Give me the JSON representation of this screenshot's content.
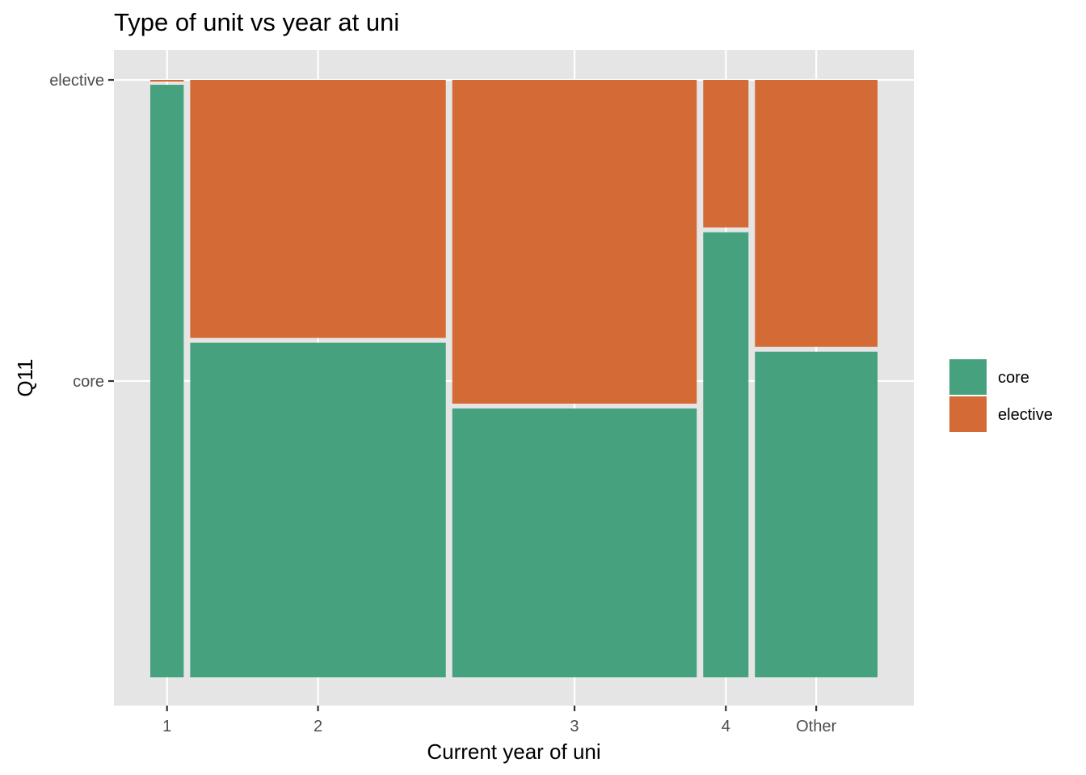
{
  "chart_data": {
    "type": "mosaic",
    "title": "Type of unit vs year at uni",
    "xlabel": "Current year of uni",
    "ylabel": "Q11",
    "x_categories": [
      "1",
      "2",
      "3",
      "4",
      "Other"
    ],
    "x_widths": [
      0.048,
      0.367,
      0.351,
      0.065,
      0.176
    ],
    "y_categories": [
      "core",
      "elective"
    ],
    "y_ticks": [
      "elective",
      "core"
    ],
    "proportions": {
      "core": [
        0.99,
        0.56,
        0.45,
        0.745,
        0.545
      ],
      "elective": [
        0.01,
        0.44,
        0.55,
        0.255,
        0.455
      ]
    },
    "colors": {
      "core": "#46a17e",
      "elective": "#d46a35"
    },
    "legend": {
      "position": "right",
      "entries": [
        {
          "key": "core",
          "label": "core"
        },
        {
          "key": "elective",
          "label": "elective"
        }
      ]
    },
    "grid": true
  }
}
